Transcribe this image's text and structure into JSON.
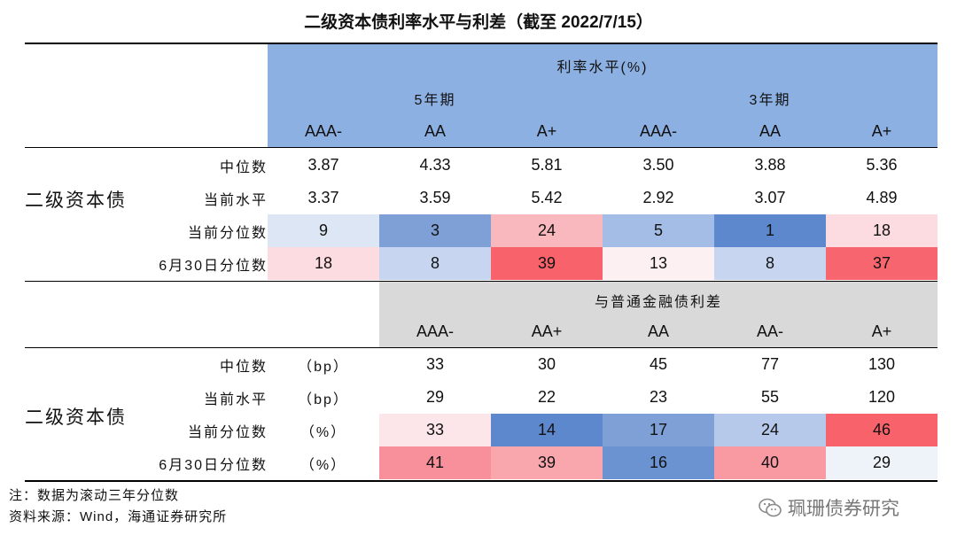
{
  "title": "二级资本债利率水平与利差（截至 2022/7/15）",
  "top": {
    "header": "利率水平(%)",
    "groups": [
      "5年期",
      "3年期"
    ],
    "columns": [
      "AAA-",
      "AA",
      "A+",
      "AAA-",
      "AA",
      "A+"
    ],
    "group_label": "二级资本债",
    "rows": [
      {
        "label": "中位数",
        "values": [
          "3.87",
          "4.33",
          "5.81",
          "3.50",
          "3.88",
          "5.36"
        ]
      },
      {
        "label": "当前水平",
        "values": [
          "3.37",
          "3.59",
          "5.42",
          "2.92",
          "3.07",
          "4.89"
        ]
      },
      {
        "label": "当前分位数",
        "values": [
          "9",
          "3",
          "24",
          "5",
          "1",
          "18"
        ],
        "colors": [
          "#dde6f4",
          "#7ea0d7",
          "#f9b8bd",
          "#a3bde6",
          "#5d88ce",
          "#fcdce0"
        ]
      },
      {
        "label": "6月30日分位数",
        "values": [
          "18",
          "8",
          "39",
          "13",
          "8",
          "37"
        ],
        "colors": [
          "#fcdce0",
          "#c7d5f0",
          "#f7626b",
          "#fdf0f2",
          "#c7d5f0",
          "#f7666f"
        ]
      }
    ]
  },
  "bottom": {
    "header": "与普通金融债利差",
    "columns": [
      "AAA-",
      "AA+",
      "AA",
      "AA-",
      "A+"
    ],
    "group_label": "二级资本债",
    "rows": [
      {
        "label": "中位数",
        "unit": "（bp）",
        "values": [
          "33",
          "30",
          "45",
          "77",
          "130"
        ]
      },
      {
        "label": "当前水平",
        "unit": "（bp）",
        "values": [
          "29",
          "22",
          "23",
          "55",
          "120"
        ]
      },
      {
        "label": "当前分位数",
        "unit": "（%）",
        "values": [
          "33",
          "14",
          "17",
          "24",
          "46"
        ],
        "colors": [
          "#fce6e9",
          "#5d88ce",
          "#7ea0d7",
          "#b6c9ea",
          "#f7626b"
        ]
      },
      {
        "label": "6月30日分位数",
        "unit": "（%）",
        "values": [
          "41",
          "39",
          "16",
          "40",
          "29"
        ],
        "colors": [
          "#f7909a",
          "#f9a6ad",
          "#6c93d1",
          "#f99aa3",
          "#eef2f9"
        ]
      }
    ]
  },
  "footnotes": [
    "注：数据为滚动三年分位数",
    "资料来源：Wind，海通证券研究所"
  ],
  "watermark": "珮珊债券研究"
}
